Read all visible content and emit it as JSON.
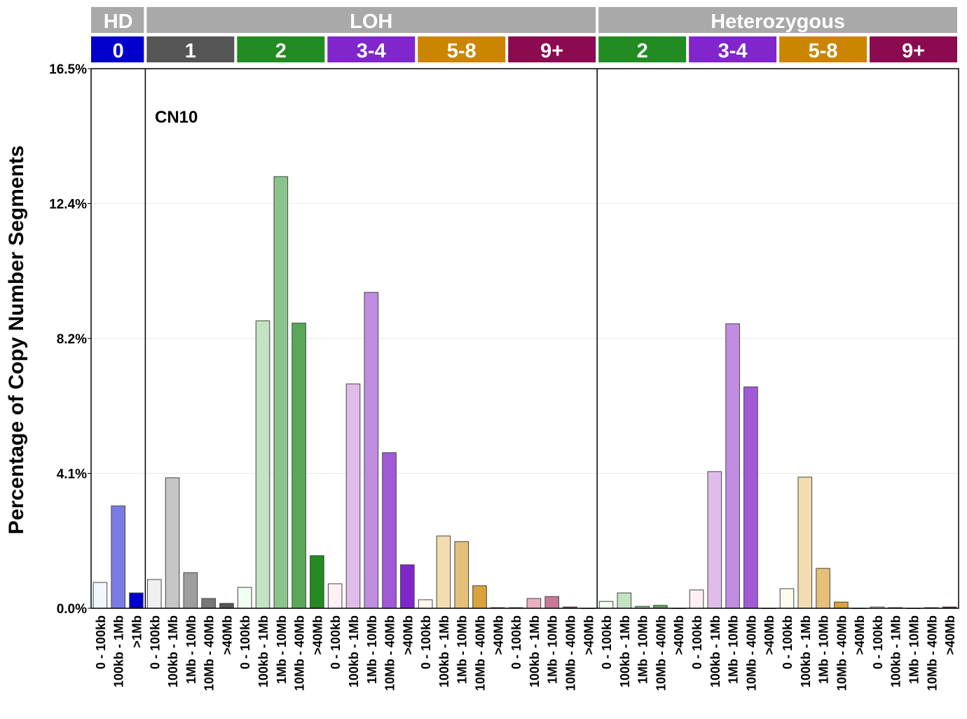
{
  "chart_data": {
    "type": "bar",
    "ylabel": "Percentage of Copy Number Segments",
    "annotation": "CN10",
    "ylim": [
      0,
      16.5
    ],
    "yticks": [
      "0.0%",
      "4.1%",
      "8.2%",
      "12.4%",
      "16.5%"
    ],
    "ytick_values": [
      0,
      4.125,
      8.25,
      12.375,
      16.5
    ],
    "grid": true,
    "top_groups": [
      {
        "label": "HD",
        "count": 3
      },
      {
        "label": "LOH",
        "count": 25
      },
      {
        "label": "Heterozygous",
        "count": 20
      }
    ],
    "cn_groups": [
      {
        "label": "0",
        "color": "#0000CD",
        "shades": [
          "#F0F8FF",
          "#7B7BE8",
          "#0000CD"
        ],
        "bins": [
          "0 - 100kb",
          "100kb - 1Mb",
          ">1Mb"
        ],
        "values": [
          0.79,
          3.13,
          0.47
        ]
      },
      {
        "label": "1",
        "color": "#555555",
        "shades": [
          "#F0F0F0",
          "#C6C6C6",
          "#9E9E9E",
          "#777777",
          "#555555"
        ],
        "bins": [
          "0 - 100kb",
          "100kb - 1Mb",
          "1Mb - 10Mb",
          "10Mb - 40Mb",
          ">40Mb"
        ],
        "values": [
          0.88,
          3.99,
          1.09,
          0.3,
          0.15
        ]
      },
      {
        "label": "2",
        "color": "#228B22",
        "shades": [
          "#F0FFF0",
          "#C3E3C3",
          "#8BC48B",
          "#58A858",
          "#228B22"
        ],
        "bins": [
          "0 - 100kb",
          "100kb - 1Mb",
          "1Mb - 10Mb",
          "10Mb - 40Mb",
          ">40Mb"
        ],
        "values": [
          0.64,
          8.79,
          13.2,
          8.72,
          1.61
        ]
      },
      {
        "label": "3-4",
        "color": "#8026CC",
        "shades": [
          "#FFF0F5",
          "#E0BDE8",
          "#C08CE0",
          "#A05AD8",
          "#8026CC"
        ],
        "bins": [
          "0 - 100kb",
          "100kb - 1Mb",
          "1Mb - 10Mb",
          "10Mb - 40Mb",
          ">40Mb"
        ],
        "values": [
          0.75,
          6.86,
          9.66,
          4.76,
          1.33
        ]
      },
      {
        "label": "5-8",
        "color": "#CC8500",
        "shades": [
          "#FFFAEE",
          "#F2DCB0",
          "#E6BF78",
          "#D9A23C",
          "#CC8500"
        ],
        "bins": [
          "0 - 100kb",
          "100kb - 1Mb",
          "1Mb - 10Mb",
          "10Mb - 40Mb",
          ">40Mb"
        ],
        "values": [
          0.26,
          2.21,
          2.04,
          0.69,
          0.02
        ]
      },
      {
        "label": "9+",
        "color": "#8B0A50",
        "shades": [
          "#FFF0F5",
          "#E8B0C0",
          "#C87898",
          "#A84070",
          "#8B0A50"
        ],
        "bins": [
          "0 - 100kb",
          "100kb - 1Mb",
          "1Mb - 10Mb",
          "10Mb - 40Mb",
          ">40Mb"
        ],
        "values": [
          0.02,
          0.3,
          0.36,
          0.04,
          0.0
        ]
      },
      {
        "label": "2",
        "color": "#228B22",
        "shades": [
          "#F0FFF0",
          "#C3E3C3",
          "#8BC48B",
          "#58A858",
          "#228B22"
        ],
        "bins": [
          "0 - 100kb",
          "100kb - 1Mb",
          "1Mb - 10Mb",
          "10Mb - 40Mb",
          ">40Mb"
        ],
        "values": [
          0.21,
          0.47,
          0.06,
          0.09,
          0.0
        ]
      },
      {
        "label": "3-4",
        "color": "#8026CC",
        "shades": [
          "#FFF0F5",
          "#E0BDE8",
          "#C08CE0",
          "#A05AD8",
          "#8026CC"
        ],
        "bins": [
          "0 - 100kb",
          "100kb - 1Mb",
          "1Mb - 10Mb",
          "10Mb - 40Mb",
          ">40Mb"
        ],
        "values": [
          0.56,
          4.18,
          8.7,
          6.77,
          0.0
        ]
      },
      {
        "label": "5-8",
        "color": "#CC8500",
        "shades": [
          "#FFFAEE",
          "#F2DCB0",
          "#E6BF78",
          "#D9A23C",
          "#CC8500"
        ],
        "bins": [
          "0 - 100kb",
          "100kb - 1Mb",
          "1Mb - 10Mb",
          "10Mb - 40Mb",
          ">40Mb"
        ],
        "values": [
          0.6,
          4.01,
          1.22,
          0.19,
          0.0
        ]
      },
      {
        "label": "9+",
        "color": "#8B0A50",
        "shades": [
          "#FFF0F5",
          "#E8B0C0",
          "#C87898",
          "#A84070",
          "#8B0A50"
        ],
        "bins": [
          "0 - 100kb",
          "100kb - 1Mb",
          "1Mb - 10Mb",
          "10Mb - 40Mb",
          ">40Mb"
        ],
        "values": [
          0.04,
          0.02,
          0.0,
          0.02,
          0.04
        ]
      }
    ],
    "header_color": "#A9A9A9"
  }
}
